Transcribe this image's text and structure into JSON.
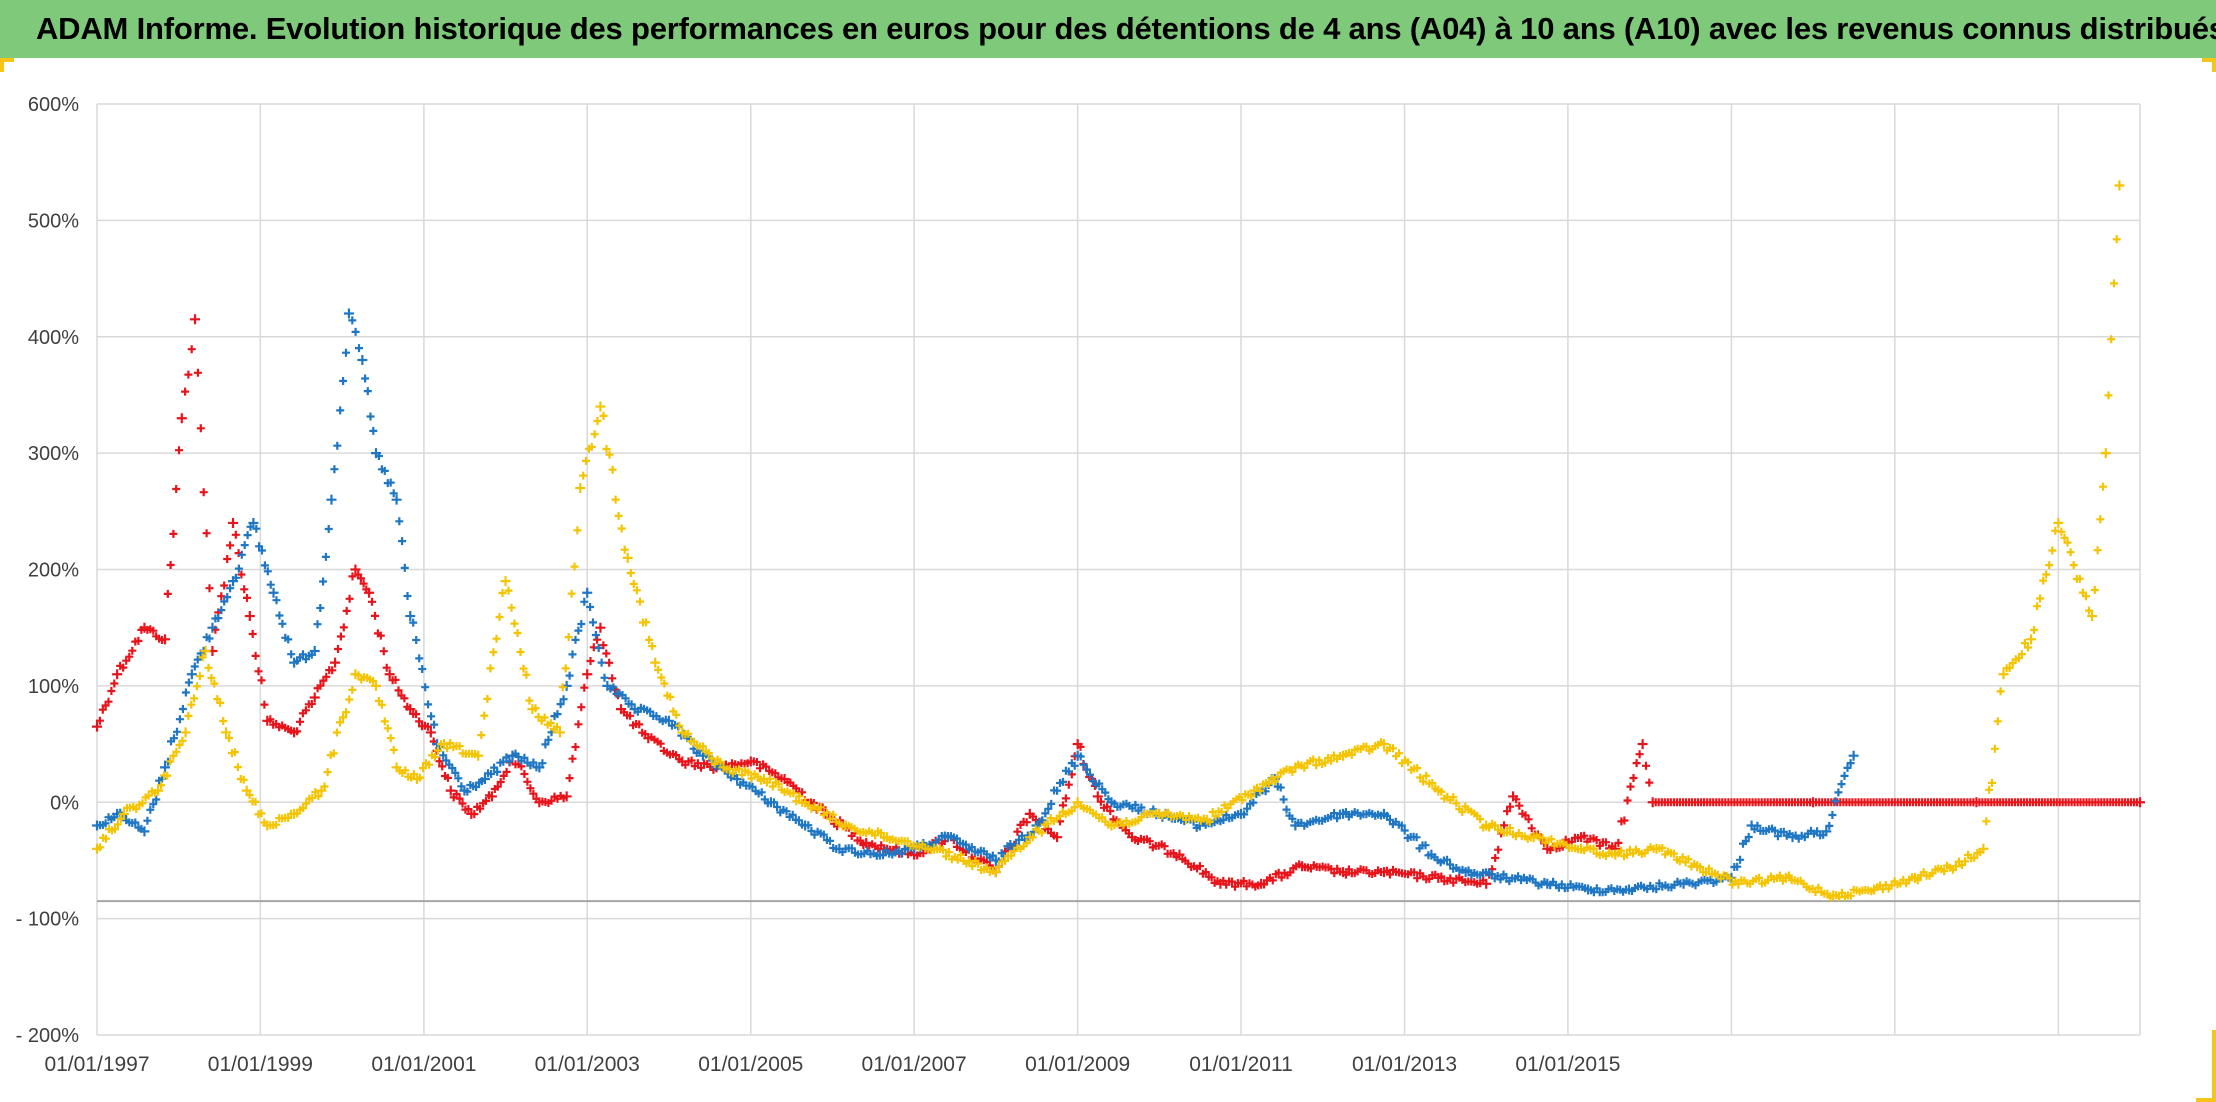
{
  "title": "ADAM Informe. Evolution historique des performances en euros pour des détentions de 4 ans (A04) à 10 ans (A10) avec les revenus connus distribués",
  "colors": {
    "title_bg": "#7fc97a",
    "series_red": "#e8141b",
    "series_blue": "#1f77c4",
    "series_yellow": "#f5c400",
    "grid": "#d9d9d9",
    "reference_line": "#a6a6a6"
  },
  "chart_data": {
    "type": "scatter",
    "marker": "plus",
    "title": "ADAM Informe. Evolution historique des performances en euros pour des détentions de 4 ans (A04) à 10 ans (A10) avec les revenus connus distribués",
    "xlabel": "",
    "ylabel": "",
    "xlim": [
      "1997-01-01",
      "2022-01-01"
    ],
    "ylim": [
      -200,
      600
    ],
    "x_ticks": [
      "01/01/1997",
      "01/01/1999",
      "01/01/2001",
      "01/01/2003",
      "01/01/2005",
      "01/01/2007",
      "01/01/2009",
      "01/01/2011",
      "01/01/2013",
      "01/01/2015"
    ],
    "y_ticks": [
      "600%",
      "500%",
      "400%",
      "300%",
      "200%",
      "100%",
      "0%",
      "- 100%",
      "- 200%"
    ],
    "y_tick_values": [
      600,
      500,
      400,
      300,
      200,
      100,
      0,
      -100,
      -200
    ],
    "grid": true,
    "legend": "none",
    "reference_line_y": -85,
    "series": [
      {
        "color": "#e8141b",
        "points": [
          [
            "1997-01-01",
            65
          ],
          [
            "1997-04-01",
            110
          ],
          [
            "1997-08-01",
            150
          ],
          [
            "1997-11-01",
            140
          ],
          [
            "1998-01-15",
            330
          ],
          [
            "1998-03-15",
            415
          ],
          [
            "1998-06-01",
            130
          ],
          [
            "1998-09-01",
            240
          ],
          [
            "1998-11-15",
            160
          ],
          [
            "1999-02-01",
            70
          ],
          [
            "1999-06-01",
            60
          ],
          [
            "1999-09-01",
            90
          ],
          [
            "1999-12-01",
            120
          ],
          [
            "2000-03-01",
            200
          ],
          [
            "2000-05-01",
            180
          ],
          [
            "2000-08-01",
            110
          ],
          [
            "2000-11-01",
            80
          ],
          [
            "2001-02-01",
            60
          ],
          [
            "2001-05-01",
            10
          ],
          [
            "2001-08-01",
            -10
          ],
          [
            "2001-11-01",
            5
          ],
          [
            "2002-02-01",
            40
          ],
          [
            "2002-06-01",
            0
          ],
          [
            "2002-10-01",
            5
          ],
          [
            "2003-01-01",
            110
          ],
          [
            "2003-03-01",
            150
          ],
          [
            "2003-06-01",
            80
          ],
          [
            "2003-10-01",
            55
          ],
          [
            "2004-03-01",
            35
          ],
          [
            "2004-08-01",
            30
          ],
          [
            "2005-01-01",
            35
          ],
          [
            "2005-06-01",
            20
          ],
          [
            "2005-12-01",
            -10
          ],
          [
            "2006-06-01",
            -35
          ],
          [
            "2007-01-01",
            -45
          ],
          [
            "2007-06-01",
            -30
          ],
          [
            "2008-01-01",
            -60
          ],
          [
            "2008-06-01",
            -10
          ],
          [
            "2008-10-01",
            -30
          ],
          [
            "2009-01-01",
            50
          ],
          [
            "2009-04-01",
            5
          ],
          [
            "2009-09-01",
            -30
          ],
          [
            "2010-04-01",
            -45
          ],
          [
            "2010-10-01",
            -70
          ],
          [
            "2011-04-01",
            -70
          ],
          [
            "2011-10-01",
            -55
          ],
          [
            "2012-04-01",
            -60
          ],
          [
            "2012-10-01",
            -60
          ],
          [
            "2013-06-01",
            -65
          ],
          [
            "2014-01-01",
            -70
          ],
          [
            "2014-05-01",
            5
          ],
          [
            "2014-10-01",
            -40
          ],
          [
            "2015-03-01",
            -30
          ],
          [
            "2015-08-01",
            -40
          ],
          [
            "2015-12-01",
            50
          ],
          [
            "2016-01-15",
            0
          ],
          [
            "2018-01-01",
            0
          ],
          [
            "2020-01-01",
            0
          ],
          [
            "2022-01-01",
            0
          ]
        ]
      },
      {
        "color": "#1f77c4",
        "points": [
          [
            "1997-01-01",
            -20
          ],
          [
            "1997-04-01",
            -10
          ],
          [
            "1997-08-01",
            -25
          ],
          [
            "1997-11-01",
            30
          ],
          [
            "1998-03-01",
            110
          ],
          [
            "1998-06-01",
            150
          ],
          [
            "1998-09-01",
            190
          ],
          [
            "1998-12-01",
            240
          ],
          [
            "1999-03-01",
            180
          ],
          [
            "1999-06-01",
            120
          ],
          [
            "1999-09-01",
            130
          ],
          [
            "1999-11-15",
            260
          ],
          [
            "2000-02-01",
            420
          ],
          [
            "2000-04-01",
            380
          ],
          [
            "2000-06-01",
            300
          ],
          [
            "2000-09-01",
            260
          ],
          [
            "2000-11-01",
            160
          ],
          [
            "2001-03-01",
            50
          ],
          [
            "2001-07-01",
            10
          ],
          [
            "2001-10-01",
            20
          ],
          [
            "2002-02-01",
            40
          ],
          [
            "2002-06-01",
            30
          ],
          [
            "2002-10-01",
            100
          ],
          [
            "2003-01-01",
            180
          ],
          [
            "2003-04-01",
            100
          ],
          [
            "2003-08-01",
            80
          ],
          [
            "2004-01-01",
            70
          ],
          [
            "2004-06-01",
            40
          ],
          [
            "2004-11-01",
            20
          ],
          [
            "2005-04-01",
            0
          ],
          [
            "2005-09-01",
            -20
          ],
          [
            "2006-02-01",
            -40
          ],
          [
            "2006-08-01",
            -45
          ],
          [
            "2007-01-01",
            -40
          ],
          [
            "2007-06-01",
            -30
          ],
          [
            "2008-01-01",
            -50
          ],
          [
            "2008-07-01",
            -20
          ],
          [
            "2009-01-01",
            40
          ],
          [
            "2009-06-01",
            0
          ],
          [
            "2010-01-01",
            -10
          ],
          [
            "2010-07-01",
            -20
          ],
          [
            "2011-01-01",
            -10
          ],
          [
            "2011-06-01",
            20
          ],
          [
            "2011-09-01",
            -20
          ],
          [
            "2012-04-01",
            -10
          ],
          [
            "2012-10-01",
            -10
          ],
          [
            "2013-05-01",
            -45
          ],
          [
            "2013-10-01",
            -60
          ],
          [
            "2014-04-01",
            -65
          ],
          [
            "2014-10-01",
            -70
          ],
          [
            "2015-04-01",
            -75
          ],
          [
            "2015-10-01",
            -75
          ],
          [
            "2016-06-01",
            -70
          ],
          [
            "2017-01-01",
            -65
          ],
          [
            "2017-04-01",
            -20
          ],
          [
            "2017-10-01",
            -30
          ],
          [
            "2018-03-01",
            -25
          ],
          [
            "2018-07-01",
            40
          ]
        ]
      },
      {
        "color": "#f5c400",
        "points": [
          [
            "1997-01-01",
            -40
          ],
          [
            "1997-05-01",
            -10
          ],
          [
            "1997-10-01",
            10
          ],
          [
            "1998-02-01",
            60
          ],
          [
            "1998-05-01",
            130
          ],
          [
            "1998-08-01",
            60
          ],
          [
            "1998-11-01",
            10
          ],
          [
            "1999-02-01",
            -20
          ],
          [
            "1999-06-01",
            -10
          ],
          [
            "1999-10-01",
            10
          ],
          [
            "2000-03-01",
            110
          ],
          [
            "2000-06-01",
            100
          ],
          [
            "2000-09-01",
            30
          ],
          [
            "2000-12-01",
            20
          ],
          [
            "2001-04-01",
            50
          ],
          [
            "2001-09-01",
            40
          ],
          [
            "2002-01-01",
            190
          ],
          [
            "2002-05-01",
            80
          ],
          [
            "2002-09-01",
            60
          ],
          [
            "2002-12-01",
            270
          ],
          [
            "2003-03-01",
            340
          ],
          [
            "2003-07-01",
            210
          ],
          [
            "2003-11-01",
            120
          ],
          [
            "2004-03-01",
            60
          ],
          [
            "2004-09-01",
            30
          ],
          [
            "2005-03-01",
            20
          ],
          [
            "2005-09-01",
            0
          ],
          [
            "2006-03-01",
            -20
          ],
          [
            "2006-09-01",
            -30
          ],
          [
            "2007-04-01",
            -40
          ],
          [
            "2008-01-01",
            -60
          ],
          [
            "2008-06-01",
            -30
          ],
          [
            "2009-01-01",
            0
          ],
          [
            "2009-06-01",
            -20
          ],
          [
            "2010-01-01",
            -10
          ],
          [
            "2010-08-01",
            -15
          ],
          [
            "2011-03-01",
            10
          ],
          [
            "2011-09-01",
            30
          ],
          [
            "2012-04-01",
            40
          ],
          [
            "2012-10-01",
            50
          ],
          [
            "2013-06-01",
            10
          ],
          [
            "2014-01-01",
            -20
          ],
          [
            "2014-08-01",
            -30
          ],
          [
            "2015-03-01",
            -40
          ],
          [
            "2015-08-01",
            -45
          ],
          [
            "2016-02-01",
            -40
          ],
          [
            "2016-08-01",
            -55
          ],
          [
            "2017-02-01",
            -70
          ],
          [
            "2017-09-01",
            -65
          ],
          [
            "2018-04-01",
            -80
          ],
          [
            "2018-10-01",
            -75
          ],
          [
            "2019-04-01",
            -65
          ],
          [
            "2019-10-01",
            -55
          ],
          [
            "2020-02-01",
            -40
          ],
          [
            "2020-05-01",
            110
          ],
          [
            "2020-09-01",
            140
          ],
          [
            "2021-01-01",
            240
          ],
          [
            "2021-06-01",
            160
          ],
          [
            "2021-08-01",
            300
          ],
          [
            "2021-10-01",
            530
          ]
        ]
      }
    ]
  }
}
